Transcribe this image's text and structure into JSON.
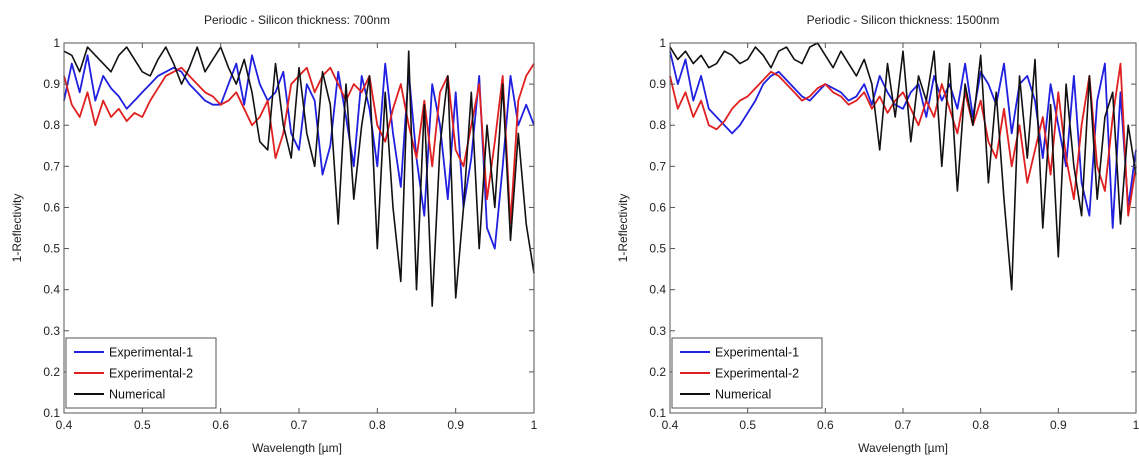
{
  "chart_data": [
    {
      "type": "line",
      "title": "Periodic - Silicon thickness: 700nm",
      "xlabel": "Wavelength [µm]",
      "ylabel": "1-Reflectivity",
      "xlim": [
        0.4,
        1.0
      ],
      "ylim": [
        0.1,
        1.0
      ],
      "xticks": [
        0.4,
        0.5,
        0.6,
        0.7,
        0.8,
        0.9,
        1.0
      ],
      "xtick_labels": [
        "0.4",
        "0.5",
        "0.6",
        "0.7",
        "0.8",
        "0.9",
        "1"
      ],
      "yticks": [
        0.1,
        0.2,
        0.3,
        0.4,
        0.5,
        0.6,
        0.7,
        0.8,
        0.9,
        1.0
      ],
      "ytick_labels": [
        "0.1",
        "0.2",
        "0.3",
        "0.4",
        "0.5",
        "0.6",
        "0.7",
        "0.8",
        "0.9",
        "1"
      ],
      "grid": false,
      "legend": "bottom-left",
      "series": [
        {
          "name": "Experimental-1",
          "color": "#2020e0",
          "x": [
            0.4,
            0.41,
            0.42,
            0.43,
            0.44,
            0.45,
            0.46,
            0.47,
            0.48,
            0.49,
            0.5,
            0.51,
            0.52,
            0.53,
            0.54,
            0.55,
            0.56,
            0.57,
            0.58,
            0.59,
            0.6,
            0.61,
            0.62,
            0.63,
            0.64,
            0.65,
            0.66,
            0.67,
            0.68,
            0.69,
            0.7,
            0.71,
            0.72,
            0.73,
            0.74,
            0.75,
            0.76,
            0.77,
            0.78,
            0.79,
            0.8,
            0.81,
            0.82,
            0.83,
            0.84,
            0.85,
            0.86,
            0.87,
            0.88,
            0.89,
            0.9,
            0.91,
            0.92,
            0.93,
            0.94,
            0.95,
            0.96,
            0.97,
            0.98,
            0.99,
            1.0
          ],
          "y": [
            0.86,
            0.95,
            0.88,
            0.97,
            0.86,
            0.92,
            0.89,
            0.87,
            0.84,
            0.86,
            0.88,
            0.9,
            0.92,
            0.93,
            0.94,
            0.93,
            0.9,
            0.88,
            0.86,
            0.85,
            0.85,
            0.9,
            0.95,
            0.85,
            0.97,
            0.9,
            0.86,
            0.88,
            0.93,
            0.78,
            0.74,
            0.9,
            0.86,
            0.68,
            0.75,
            0.93,
            0.82,
            0.7,
            0.92,
            0.84,
            0.7,
            0.95,
            0.78,
            0.65,
            0.93,
            0.72,
            0.58,
            0.9,
            0.8,
            0.62,
            0.88,
            0.6,
            0.72,
            0.92,
            0.55,
            0.5,
            0.7,
            0.92,
            0.8,
            0.85,
            0.8
          ]
        },
        {
          "name": "Experimental-2",
          "color": "#e02020",
          "x": [
            0.4,
            0.41,
            0.42,
            0.43,
            0.44,
            0.45,
            0.46,
            0.47,
            0.48,
            0.49,
            0.5,
            0.51,
            0.52,
            0.53,
            0.54,
            0.55,
            0.56,
            0.57,
            0.58,
            0.59,
            0.6,
            0.61,
            0.62,
            0.63,
            0.64,
            0.65,
            0.66,
            0.67,
            0.68,
            0.69,
            0.7,
            0.71,
            0.72,
            0.73,
            0.74,
            0.75,
            0.76,
            0.77,
            0.78,
            0.79,
            0.8,
            0.81,
            0.82,
            0.83,
            0.84,
            0.85,
            0.86,
            0.87,
            0.88,
            0.89,
            0.9,
            0.91,
            0.92,
            0.93,
            0.94,
            0.95,
            0.96,
            0.97,
            0.98,
            0.99,
            1.0
          ],
          "y": [
            0.92,
            0.85,
            0.82,
            0.88,
            0.8,
            0.86,
            0.82,
            0.84,
            0.81,
            0.83,
            0.82,
            0.86,
            0.89,
            0.92,
            0.93,
            0.94,
            0.92,
            0.9,
            0.88,
            0.87,
            0.85,
            0.86,
            0.88,
            0.84,
            0.8,
            0.82,
            0.86,
            0.72,
            0.78,
            0.9,
            0.92,
            0.94,
            0.88,
            0.92,
            0.94,
            0.9,
            0.86,
            0.9,
            0.88,
            0.92,
            0.8,
            0.76,
            0.84,
            0.9,
            0.8,
            0.72,
            0.86,
            0.7,
            0.88,
            0.92,
            0.74,
            0.7,
            0.8,
            0.9,
            0.62,
            0.76,
            0.92,
            0.56,
            0.86,
            0.92,
            0.95
          ]
        },
        {
          "name": "Numerical",
          "color": "#111111",
          "x": [
            0.4,
            0.41,
            0.42,
            0.43,
            0.44,
            0.45,
            0.46,
            0.47,
            0.48,
            0.49,
            0.5,
            0.51,
            0.52,
            0.53,
            0.54,
            0.55,
            0.56,
            0.57,
            0.58,
            0.59,
            0.6,
            0.61,
            0.62,
            0.63,
            0.64,
            0.65,
            0.66,
            0.67,
            0.68,
            0.69,
            0.7,
            0.71,
            0.72,
            0.73,
            0.74,
            0.75,
            0.76,
            0.77,
            0.78,
            0.79,
            0.8,
            0.81,
            0.82,
            0.83,
            0.84,
            0.85,
            0.86,
            0.87,
            0.88,
            0.89,
            0.9,
            0.91,
            0.92,
            0.93,
            0.94,
            0.95,
            0.96,
            0.97,
            0.98,
            0.99,
            1.0
          ],
          "y": [
            0.98,
            0.97,
            0.93,
            0.99,
            0.97,
            0.95,
            0.93,
            0.97,
            0.99,
            0.96,
            0.93,
            0.92,
            0.96,
            0.99,
            0.95,
            0.9,
            0.94,
            0.99,
            0.93,
            0.96,
            0.99,
            0.94,
            0.9,
            0.96,
            0.88,
            0.76,
            0.74,
            0.95,
            0.8,
            0.72,
            0.94,
            0.78,
            0.7,
            0.93,
            0.85,
            0.56,
            0.9,
            0.62,
            0.8,
            0.92,
            0.5,
            0.88,
            0.6,
            0.42,
            0.98,
            0.4,
            0.85,
            0.36,
            0.75,
            0.92,
            0.38,
            0.6,
            0.88,
            0.5,
            0.8,
            0.6,
            0.9,
            0.52,
            0.78,
            0.56,
            0.44
          ]
        }
      ]
    },
    {
      "type": "line",
      "title": "Periodic - Silicon thickness: 1500nm",
      "xlabel": "Wavelength [µm]",
      "ylabel": "1-Reflectivity",
      "xlim": [
        0.4,
        1.0
      ],
      "ylim": [
        0.1,
        1.0
      ],
      "xticks": [
        0.4,
        0.5,
        0.6,
        0.7,
        0.8,
        0.9,
        1.0
      ],
      "xtick_labels": [
        "0.4",
        "0.5",
        "0.6",
        "0.7",
        "0.8",
        "0.9",
        "1"
      ],
      "yticks": [
        0.1,
        0.2,
        0.3,
        0.4,
        0.5,
        0.6,
        0.7,
        0.8,
        0.9,
        1.0
      ],
      "ytick_labels": [
        "0.1",
        "0.2",
        "0.3",
        "0.4",
        "0.5",
        "0.6",
        "0.7",
        "0.8",
        "0.9",
        "1"
      ],
      "grid": false,
      "legend": "bottom-left",
      "series": [
        {
          "name": "Experimental-1",
          "color": "#2020e0",
          "x": [
            0.4,
            0.41,
            0.42,
            0.43,
            0.44,
            0.45,
            0.46,
            0.47,
            0.48,
            0.49,
            0.5,
            0.51,
            0.52,
            0.53,
            0.54,
            0.55,
            0.56,
            0.57,
            0.58,
            0.59,
            0.6,
            0.61,
            0.62,
            0.63,
            0.64,
            0.65,
            0.66,
            0.67,
            0.68,
            0.69,
            0.7,
            0.71,
            0.72,
            0.73,
            0.74,
            0.75,
            0.76,
            0.77,
            0.78,
            0.79,
            0.8,
            0.81,
            0.82,
            0.83,
            0.84,
            0.85,
            0.86,
            0.87,
            0.88,
            0.89,
            0.9,
            0.91,
            0.92,
            0.93,
            0.94,
            0.95,
            0.96,
            0.97,
            0.98,
            0.99,
            1.0
          ],
          "y": [
            0.98,
            0.9,
            0.96,
            0.86,
            0.92,
            0.84,
            0.82,
            0.8,
            0.78,
            0.8,
            0.83,
            0.86,
            0.9,
            0.92,
            0.93,
            0.91,
            0.89,
            0.87,
            0.86,
            0.88,
            0.9,
            0.89,
            0.88,
            0.86,
            0.87,
            0.9,
            0.85,
            0.92,
            0.88,
            0.85,
            0.84,
            0.88,
            0.9,
            0.82,
            0.92,
            0.86,
            0.9,
            0.84,
            0.95,
            0.82,
            0.93,
            0.9,
            0.85,
            0.95,
            0.78,
            0.9,
            0.92,
            0.86,
            0.72,
            0.9,
            0.8,
            0.7,
            0.92,
            0.66,
            0.58,
            0.86,
            0.95,
            0.55,
            0.88,
            0.6,
            0.74
          ]
        },
        {
          "name": "Experimental-2",
          "color": "#e02020",
          "x": [
            0.4,
            0.41,
            0.42,
            0.43,
            0.44,
            0.45,
            0.46,
            0.47,
            0.48,
            0.49,
            0.5,
            0.51,
            0.52,
            0.53,
            0.54,
            0.55,
            0.56,
            0.57,
            0.58,
            0.59,
            0.6,
            0.61,
            0.62,
            0.63,
            0.64,
            0.65,
            0.66,
            0.67,
            0.68,
            0.69,
            0.7,
            0.71,
            0.72,
            0.73,
            0.74,
            0.75,
            0.76,
            0.77,
            0.78,
            0.79,
            0.8,
            0.81,
            0.82,
            0.83,
            0.84,
            0.85,
            0.86,
            0.87,
            0.88,
            0.89,
            0.9,
            0.91,
            0.92,
            0.93,
            0.94,
            0.95,
            0.96,
            0.97,
            0.98,
            0.99,
            1.0
          ],
          "y": [
            0.92,
            0.84,
            0.88,
            0.82,
            0.86,
            0.8,
            0.79,
            0.81,
            0.84,
            0.86,
            0.87,
            0.89,
            0.91,
            0.93,
            0.92,
            0.9,
            0.88,
            0.86,
            0.87,
            0.89,
            0.9,
            0.88,
            0.87,
            0.85,
            0.86,
            0.88,
            0.84,
            0.87,
            0.83,
            0.86,
            0.88,
            0.84,
            0.8,
            0.86,
            0.82,
            0.9,
            0.84,
            0.78,
            0.88,
            0.8,
            0.86,
            0.76,
            0.72,
            0.84,
            0.7,
            0.8,
            0.66,
            0.74,
            0.82,
            0.68,
            0.88,
            0.72,
            0.62,
            0.8,
            0.92,
            0.7,
            0.64,
            0.82,
            0.95,
            0.58,
            0.7
          ]
        },
        {
          "name": "Numerical",
          "color": "#111111",
          "x": [
            0.4,
            0.41,
            0.42,
            0.43,
            0.44,
            0.45,
            0.46,
            0.47,
            0.48,
            0.49,
            0.5,
            0.51,
            0.52,
            0.53,
            0.54,
            0.55,
            0.56,
            0.57,
            0.58,
            0.59,
            0.6,
            0.61,
            0.62,
            0.63,
            0.64,
            0.65,
            0.66,
            0.67,
            0.68,
            0.69,
            0.7,
            0.71,
            0.72,
            0.73,
            0.74,
            0.75,
            0.76,
            0.77,
            0.78,
            0.79,
            0.8,
            0.81,
            0.82,
            0.83,
            0.84,
            0.85,
            0.86,
            0.87,
            0.88,
            0.89,
            0.9,
            0.91,
            0.92,
            0.93,
            0.94,
            0.95,
            0.96,
            0.97,
            0.98,
            0.99,
            1.0
          ],
          "y": [
            0.99,
            0.96,
            0.98,
            0.95,
            0.97,
            0.94,
            0.95,
            0.98,
            0.97,
            0.95,
            0.96,
            0.99,
            0.97,
            0.94,
            0.98,
            0.99,
            0.96,
            0.95,
            0.99,
            1.0,
            0.97,
            0.94,
            0.98,
            0.95,
            0.92,
            0.96,
            0.9,
            0.74,
            0.95,
            0.82,
            0.98,
            0.76,
            0.92,
            0.86,
            0.98,
            0.7,
            0.95,
            0.64,
            0.9,
            0.8,
            0.97,
            0.66,
            0.88,
            0.62,
            0.4,
            0.92,
            0.72,
            0.96,
            0.55,
            0.85,
            0.48,
            0.9,
            0.7,
            0.58,
            0.92,
            0.62,
            0.82,
            0.88,
            0.56,
            0.8,
            0.68
          ]
        }
      ]
    }
  ]
}
